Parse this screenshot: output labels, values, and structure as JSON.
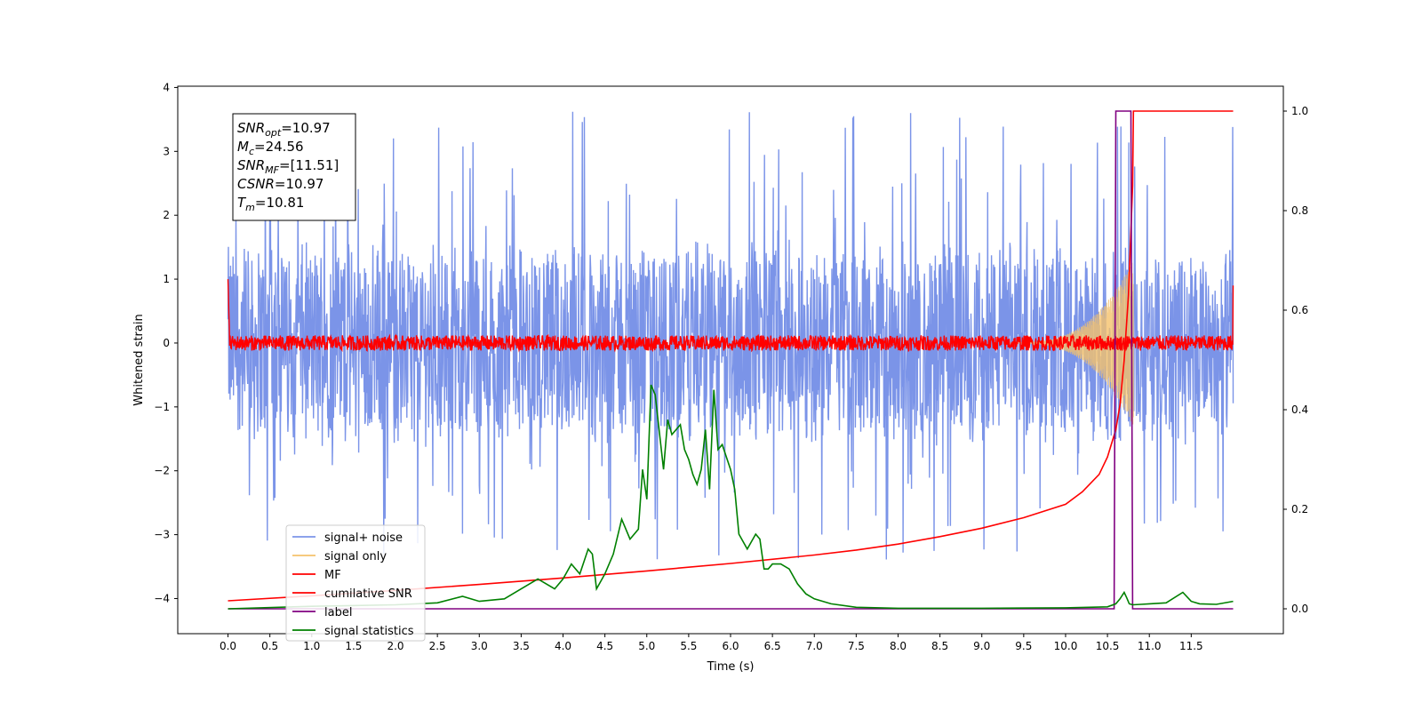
{
  "chart_data": {
    "type": "line",
    "title": "",
    "xlabel": "Time (s)",
    "ylabel": "Whitened strain",
    "y2label": "",
    "xlim": [
      -0.6,
      12.6
    ],
    "ylim": [
      -4.55,
      4.02
    ],
    "y2lim": [
      -0.05,
      1.05
    ],
    "grid": false,
    "legend_position": "lower-left",
    "x_ticks": [
      0.0,
      0.5,
      1.0,
      1.5,
      2.0,
      2.5,
      3.0,
      3.5,
      4.0,
      4.5,
      5.0,
      5.5,
      6.0,
      6.5,
      7.0,
      7.5,
      8.0,
      8.5,
      9.0,
      9.5,
      10.0,
      10.5,
      11.0,
      11.5
    ],
    "x_tick_labels": [
      "0.0",
      "0.5",
      "1.0",
      "1.5",
      "2.0",
      "2.5",
      "3.0",
      "3.5",
      "4.0",
      "4.5",
      "5.0",
      "5.5",
      "6.0",
      "6.5",
      "7.0",
      "7.5",
      "8.0",
      "8.5",
      "9.0",
      "9.5",
      "10.0",
      "10.5",
      "11.0",
      "11.5"
    ],
    "y_ticks": [
      4,
      3,
      2,
      1,
      0,
      -1,
      -2,
      -3,
      -4
    ],
    "y_tick_labels": [
      "4",
      "3",
      "2",
      "1",
      "0",
      "−1",
      "−2",
      "−3",
      "−4"
    ],
    "y2_ticks": [
      1.0,
      0.8,
      0.6,
      0.4,
      0.2,
      0.0
    ],
    "y2_tick_labels": [
      "1.0",
      "0.8",
      "0.6",
      "0.4",
      "0.2",
      "0.0"
    ],
    "annotation": [
      {
        "base": "SNR",
        "sub": "opt",
        "rest": "=10.97"
      },
      {
        "base": "M",
        "sub": "c",
        "rest": "=24.56"
      },
      {
        "base": "SNR",
        "sub": "MF",
        "rest": "=[11.51]"
      },
      {
        "base": "CSNR",
        "sub": "",
        "rest": "=10.97"
      },
      {
        "base": "T",
        "sub": "m",
        "rest": "=10.81"
      }
    ],
    "series": [
      {
        "name": "signal+ noise",
        "color": "#7b94e8",
        "axis": "left",
        "style": "noise",
        "x_range": [
          0.0,
          12.0
        ],
        "band": [
          -1.7,
          1.7
        ],
        "spike_max": 3.62,
        "spike_min": -3.45
      },
      {
        "name": "signal only",
        "color": "#f5c26b",
        "axis": "left",
        "style": "chirp",
        "x_range": [
          9.3,
          10.81
        ],
        "peak_amplitude": 1.3
      },
      {
        "name": "MF",
        "color": "#ff0000",
        "axis": "left",
        "style": "noise",
        "x_range": [
          0.0,
          12.0
        ],
        "band": [
          -0.15,
          0.15
        ],
        "start_value": 1.0,
        "end_value": 0.9
      },
      {
        "name": "cumilative SNR",
        "color": "#ff0000",
        "axis": "right",
        "x": [
          0.0,
          1.0,
          2.0,
          3.0,
          4.0,
          5.0,
          6.0,
          7.0,
          7.5,
          8.0,
          8.5,
          9.0,
          9.5,
          10.0,
          10.2,
          10.4,
          10.5,
          10.6,
          10.65,
          10.7,
          10.75,
          10.8,
          10.81,
          12.0
        ],
        "y": [
          0.016,
          0.026,
          0.037,
          0.049,
          0.062,
          0.076,
          0.091,
          0.108,
          0.118,
          0.13,
          0.145,
          0.162,
          0.183,
          0.21,
          0.235,
          0.27,
          0.305,
          0.36,
          0.41,
          0.5,
          0.63,
          0.85,
          1.0,
          1.0
        ]
      },
      {
        "name": "label",
        "color": "#800080",
        "axis": "right",
        "x": [
          0.0,
          10.58,
          10.6,
          10.78,
          10.8,
          12.0
        ],
        "y": [
          0.0,
          0.0,
          1.0,
          1.0,
          0.0,
          0.0
        ]
      },
      {
        "name": "signal statistics",
        "color": "#008000",
        "axis": "right",
        "x": [
          0.0,
          1.0,
          2.0,
          2.5,
          2.8,
          3.0,
          3.3,
          3.5,
          3.7,
          3.9,
          4.0,
          4.1,
          4.2,
          4.3,
          4.35,
          4.4,
          4.5,
          4.6,
          4.7,
          4.8,
          4.9,
          4.95,
          5.0,
          5.05,
          5.1,
          5.2,
          5.25,
          5.3,
          5.4,
          5.45,
          5.5,
          5.55,
          5.6,
          5.65,
          5.7,
          5.75,
          5.8,
          5.85,
          5.9,
          6.0,
          6.05,
          6.1,
          6.2,
          6.3,
          6.35,
          6.4,
          6.45,
          6.5,
          6.6,
          6.7,
          6.8,
          6.9,
          7.0,
          7.2,
          7.5,
          8.0,
          9.0,
          10.0,
          10.5,
          10.6,
          10.65,
          10.7,
          10.73,
          10.76,
          10.8,
          10.9,
          11.0,
          11.2,
          11.4,
          11.5,
          11.6,
          11.8,
          12.0
        ],
        "y": [
          0.0,
          0.005,
          0.008,
          0.012,
          0.025,
          0.015,
          0.02,
          0.04,
          0.06,
          0.04,
          0.06,
          0.09,
          0.07,
          0.12,
          0.11,
          0.04,
          0.07,
          0.11,
          0.18,
          0.14,
          0.16,
          0.28,
          0.22,
          0.45,
          0.43,
          0.28,
          0.38,
          0.35,
          0.37,
          0.32,
          0.3,
          0.27,
          0.25,
          0.28,
          0.36,
          0.24,
          0.44,
          0.32,
          0.33,
          0.28,
          0.24,
          0.15,
          0.12,
          0.15,
          0.14,
          0.08,
          0.08,
          0.09,
          0.09,
          0.08,
          0.05,
          0.03,
          0.02,
          0.01,
          0.003,
          0.001,
          0.001,
          0.002,
          0.004,
          0.01,
          0.02,
          0.033,
          0.022,
          0.01,
          0.008,
          0.009,
          0.01,
          0.012,
          0.033,
          0.015,
          0.01,
          0.009,
          0.015
        ]
      }
    ]
  }
}
